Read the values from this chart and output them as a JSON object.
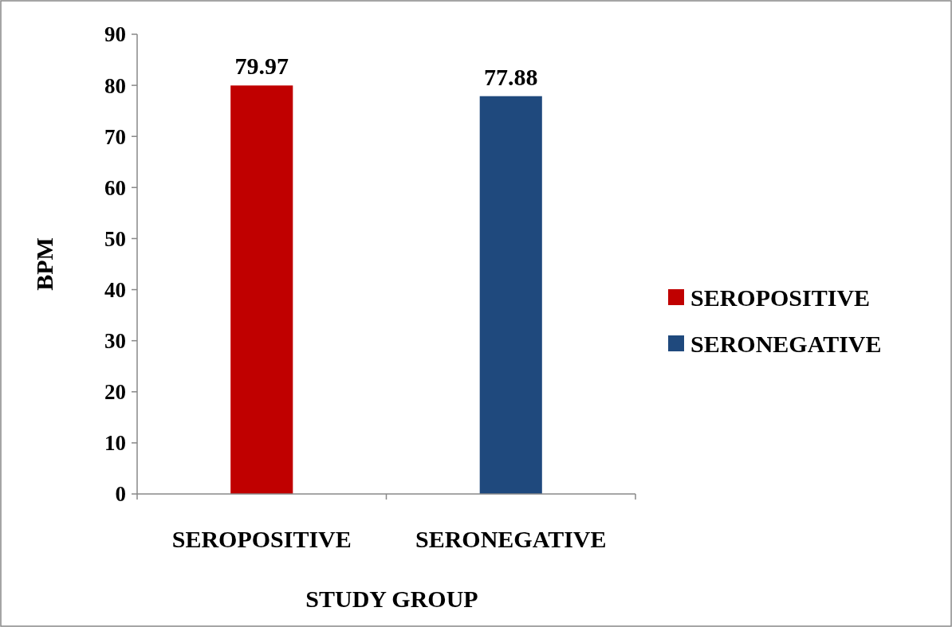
{
  "chart_data": {
    "type": "bar",
    "xlabel": "STUDY GROUP",
    "ylabel": "BPM",
    "categories": [
      "SEROPOSITIVE",
      "SERONEGATIVE"
    ],
    "series": [
      {
        "name": "SEROPOSITIVE",
        "color": "#c00000",
        "values": [
          79.97,
          null
        ]
      },
      {
        "name": "SERONEGATIVE",
        "color": "#1f497d",
        "values": [
          null,
          77.88
        ]
      }
    ],
    "ylim": [
      0,
      90
    ],
    "yticks": [
      0,
      10,
      20,
      30,
      40,
      50,
      60,
      70,
      80,
      90
    ],
    "data_labels": true,
    "legend": "right",
    "grid": false
  }
}
